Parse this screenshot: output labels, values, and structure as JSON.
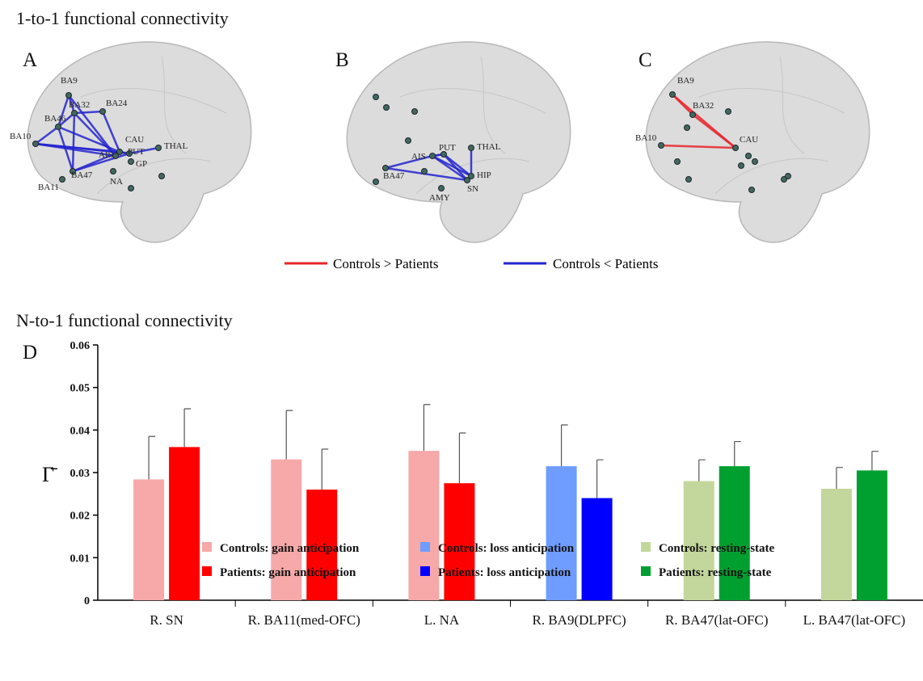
{
  "top": {
    "title": "1-to-1 functional connectivity",
    "panels": [
      {
        "label": "A",
        "nodes": [
          "BA9",
          "BA32",
          "BA24",
          "BA46",
          "BA10",
          "CAU",
          "PUT",
          "THAL",
          "AIS",
          "GP",
          "BA47",
          "NA",
          "BA11"
        ]
      },
      {
        "label": "B",
        "nodes": [
          "AIS",
          "PUT",
          "THAL",
          "HIP",
          "SN",
          "BA47",
          "AMY"
        ]
      },
      {
        "label": "C",
        "nodes": [
          "BA9",
          "BA32",
          "BA10",
          "CAU"
        ]
      }
    ],
    "legend": [
      {
        "name": "Controls > Patients",
        "color": "#e8242a"
      },
      {
        "name": "Controls < Patients",
        "color": "#2424d0"
      }
    ]
  },
  "chart_data": {
    "type": "bar",
    "title": "N-to-1 functional connectivity",
    "panel_label": "D",
    "ylabel": "Γ̄",
    "categories": [
      "R. SN",
      "R. BA11(med-OFC)",
      "L. NA",
      "R. BA9(DLPFC)",
      "R. BA47(lat-OFC)",
      "L. BA47(lat-OFC)"
    ],
    "ylim": [
      0,
      0.06
    ],
    "yticks": [
      0,
      0.01,
      0.02,
      0.03,
      0.04,
      0.05,
      0.06
    ],
    "series": [
      {
        "name": "Controls: gain anticipation",
        "color": "#f7a8a8",
        "values": [
          0.0284,
          0.0331,
          0.0351,
          null,
          null,
          null
        ],
        "errors": [
          0.0101,
          0.0115,
          0.0109,
          null,
          null,
          null
        ]
      },
      {
        "name": "Patients: gain anticipation",
        "color": "#ff0000",
        "values": [
          0.036,
          0.026,
          0.0275,
          null,
          null,
          null
        ],
        "errors": [
          0.009,
          0.0095,
          0.0118,
          null,
          null,
          null
        ]
      },
      {
        "name": "Controls: loss anticipation",
        "color": "#6e9cff",
        "values": [
          null,
          null,
          null,
          0.0315,
          null,
          null
        ],
        "errors": [
          null,
          null,
          null,
          0.0097,
          null,
          null
        ]
      },
      {
        "name": "Patients: loss anticipation",
        "color": "#0000ff",
        "values": [
          null,
          null,
          null,
          0.024,
          null,
          null
        ],
        "errors": [
          null,
          null,
          null,
          0.009,
          null,
          null
        ]
      },
      {
        "name": "Controls: resting-state",
        "color": "#c3d69b",
        "values": [
          null,
          null,
          null,
          null,
          0.028,
          0.0262
        ],
        "errors": [
          null,
          null,
          null,
          null,
          0.005,
          0.005
        ]
      },
      {
        "name": "Patients: resting-state",
        "color": "#00a030",
        "values": [
          null,
          null,
          null,
          null,
          0.0315,
          0.0305
        ],
        "errors": [
          null,
          null,
          null,
          null,
          0.0058,
          0.0045
        ]
      }
    ]
  }
}
